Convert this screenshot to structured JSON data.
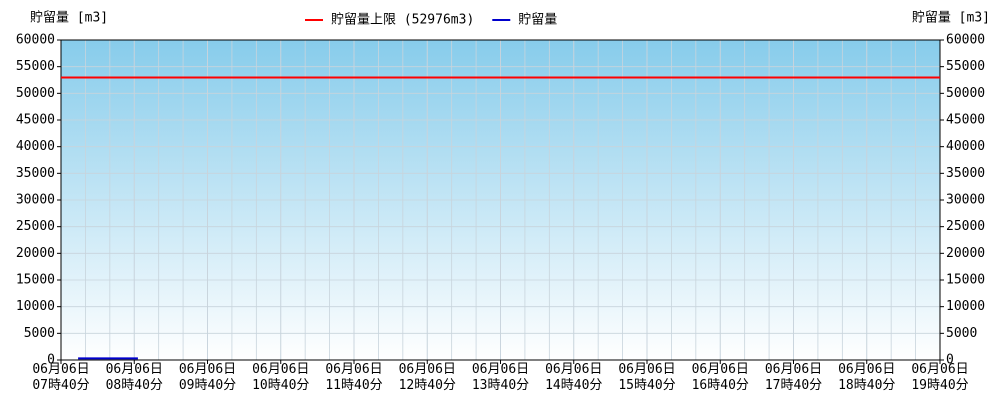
{
  "chart_data": {
    "type": "line",
    "y_label": "貯留量 [m3]",
    "y2_label": "貯留量 [m3]",
    "xlim": [
      460,
      1180
    ],
    "xticks": [
      {
        "value": 460,
        "label": "06月06日\n07時40分"
      },
      {
        "value": 520,
        "label": "06月06日\n08時40分"
      },
      {
        "value": 580,
        "label": "06月06日\n09時40分"
      },
      {
        "value": 640,
        "label": "06月06日\n10時40分"
      },
      {
        "value": 700,
        "label": "06月06日\n11時40分"
      },
      {
        "value": 760,
        "label": "06月06日\n12時40分"
      },
      {
        "value": 820,
        "label": "06月06日\n13時40分"
      },
      {
        "value": 880,
        "label": "06月06日\n14時40分"
      },
      {
        "value": 940,
        "label": "06月06日\n15時40分"
      },
      {
        "value": 1000,
        "label": "06月06日\n16時40分"
      },
      {
        "value": 1060,
        "label": "06月06日\n17時40分"
      },
      {
        "value": 1120,
        "label": "06月06日\n18時40分"
      },
      {
        "value": 1180,
        "label": "06月06日\n19時40分"
      }
    ],
    "ylim": [
      0,
      60000
    ],
    "yticks": [
      0,
      5000,
      10000,
      15000,
      20000,
      25000,
      30000,
      35000,
      40000,
      45000,
      50000,
      55000,
      60000
    ],
    "y2lim": [
      0,
      60000
    ],
    "y2ticks": [
      0,
      5000,
      10000,
      15000,
      20000,
      25000,
      30000,
      35000,
      40000,
      45000,
      50000,
      55000,
      60000
    ],
    "grid": true,
    "series": [
      {
        "name": "貯留量上限 (52976m3)",
        "color": "#ff0000",
        "x": [
          460,
          1180
        ],
        "values": [
          52976,
          52976
        ]
      },
      {
        "name": "貯留量",
        "color": "#0000cc",
        "x": [
          474,
          480,
          490,
          500,
          510,
          520,
          523
        ],
        "values": [
          300,
          300,
          300,
          300,
          300,
          300,
          300
        ]
      }
    ]
  }
}
